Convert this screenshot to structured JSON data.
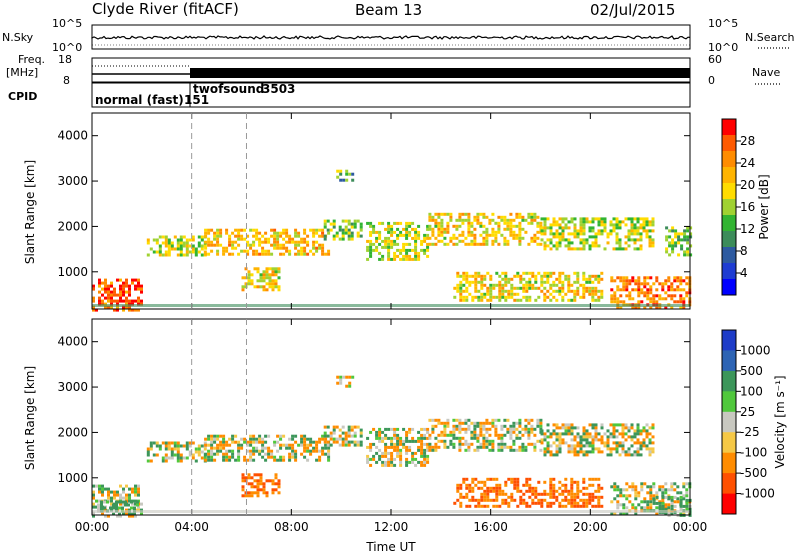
{
  "header": {
    "station": "Clyde River (fitACF)",
    "beam": "Beam 13",
    "date": "02/Jul/2015"
  },
  "noise_panel": {
    "left_label": "N.Sky",
    "right_label": "N.Search",
    "left_ticks": [
      "10^5",
      "10^0"
    ],
    "right_ticks": [
      "10^5",
      "10^0"
    ]
  },
  "freq_panel": {
    "left_label_line1": "Freq.",
    "left_label_line2": "[MHz]",
    "right_label": "Nave",
    "left_ticks": [
      "18",
      "8"
    ],
    "right_ticks": [
      "60",
      "0"
    ]
  },
  "cpid_panel": {
    "label": "CPID",
    "entries": [
      {
        "text": "normal (fast)",
        "start_hour": 0
      },
      {
        "text": "151",
        "start_hour": 4
      },
      {
        "text": "twofsound",
        "start_hour": 4.2
      },
      {
        "text": "3503",
        "start_hour": 4.2
      }
    ]
  },
  "power_colorbar": {
    "label": "Power [dB]",
    "ticks": [
      "28",
      "24",
      "20",
      "16",
      "12",
      "8",
      "4"
    ],
    "colors": [
      "#ff0000",
      "#ff5a00",
      "#ff8c00",
      "#ffb400",
      "#ffdc00",
      "#a0d232",
      "#32b432",
      "#3c8c5a",
      "#2d5aa0",
      "#1e3cd2",
      "#0000ff"
    ]
  },
  "velocity_colorbar": {
    "label": "Velocity [m s⁻¹]",
    "ticks": [
      "1000",
      "500",
      "100",
      "25",
      "-25",
      "-100",
      "-500",
      "-1000"
    ],
    "colors": [
      "#1e3cc8",
      "#2d64b4",
      "#3c965a",
      "#50c83c",
      "#c8c8c0",
      "#f5c846",
      "#ff8c00",
      "#ff5000",
      "#ff0000"
    ]
  },
  "x_axis": {
    "label": "Time UT",
    "ticks": [
      "00:00",
      "04:00",
      "08:00",
      "12:00",
      "16:00",
      "20:00",
      "00:00"
    ]
  },
  "chart_data": [
    {
      "type": "heatmap",
      "name": "power",
      "ylabel": "Slant Range [km]",
      "xlabel": "",
      "ylim": [
        180,
        4500
      ],
      "xlim_hours": [
        0,
        24
      ],
      "y_ticks": [
        1000,
        2000,
        3000,
        4000
      ],
      "colorbar_label": "Power [dB]",
      "colorbar_range": [
        0,
        30
      ],
      "vertical_marker_hours": [
        4,
        6.2
      ],
      "echo_regions": [
        {
          "t": [
            0,
            2.0
          ],
          "range_km": [
            180,
            850
          ],
          "value": 26
        },
        {
          "t": [
            2.2,
            4.5
          ],
          "range_km": [
            1350,
            1800
          ],
          "value": 16
        },
        {
          "t": [
            4.5,
            9.5
          ],
          "range_km": [
            1400,
            1950
          ],
          "value": 20
        },
        {
          "t": [
            6.0,
            7.5
          ],
          "range_km": [
            600,
            1100
          ],
          "value": 18
        },
        {
          "t": [
            9.3,
            10.8
          ],
          "range_km": [
            1700,
            2150
          ],
          "value": 14
        },
        {
          "t": [
            9.8,
            10.5
          ],
          "range_km": [
            3050,
            3250
          ],
          "value": 12
        },
        {
          "t": [
            11.0,
            13.5
          ],
          "range_km": [
            1300,
            2100
          ],
          "value": 16
        },
        {
          "t": [
            13.5,
            18.0
          ],
          "range_km": [
            1600,
            2300
          ],
          "value": 18
        },
        {
          "t": [
            14.5,
            20.5
          ],
          "range_km": [
            400,
            1000
          ],
          "value": 18
        },
        {
          "t": [
            18.0,
            22.5
          ],
          "range_km": [
            1500,
            2200
          ],
          "value": 16
        },
        {
          "t": [
            20.8,
            24
          ],
          "range_km": [
            180,
            900
          ],
          "value": 24
        },
        {
          "t": [
            23.0,
            24
          ],
          "range_km": [
            1400,
            2000
          ],
          "value": 14
        }
      ]
    },
    {
      "type": "heatmap",
      "name": "velocity",
      "ylabel": "Slant Range [km]",
      "xlabel": "Time UT",
      "ylim": [
        180,
        4500
      ],
      "xlim_hours": [
        0,
        24
      ],
      "y_ticks": [
        1000,
        2000,
        3000,
        4000
      ],
      "colorbar_label": "Velocity [m s⁻¹]",
      "colorbar_range": [
        -1000,
        1000
      ],
      "vertical_marker_hours": [
        4,
        6.2
      ],
      "echo_regions": [
        {
          "t": [
            0,
            2.0
          ],
          "range_km": [
            180,
            850
          ],
          "value": 0
        },
        {
          "t": [
            0.2,
            1.8
          ],
          "range_km": [
            200,
            500
          ],
          "value": 150
        },
        {
          "t": [
            2.2,
            4.5
          ],
          "range_km": [
            1350,
            1800
          ],
          "value": 0
        },
        {
          "t": [
            4.5,
            9.5
          ],
          "range_km": [
            1400,
            1950
          ],
          "value": 0
        },
        {
          "t": [
            6.0,
            7.5
          ],
          "range_km": [
            600,
            1100
          ],
          "value": -300
        },
        {
          "t": [
            9.3,
            10.8
          ],
          "range_km": [
            1700,
            2150
          ],
          "value": 0
        },
        {
          "t": [
            9.8,
            10.5
          ],
          "range_km": [
            3050,
            3250
          ],
          "value": -60
        },
        {
          "t": [
            11.0,
            13.5
          ],
          "range_km": [
            1300,
            2100
          ],
          "value": 0
        },
        {
          "t": [
            13.5,
            18.0
          ],
          "range_km": [
            1600,
            2300
          ],
          "value": 0
        },
        {
          "t": [
            14.5,
            20.5
          ],
          "range_km": [
            400,
            1000
          ],
          "value": -300
        },
        {
          "t": [
            18.0,
            22.5
          ],
          "range_km": [
            1500,
            2200
          ],
          "value": 0
        },
        {
          "t": [
            20.8,
            24
          ],
          "range_km": [
            180,
            900
          ],
          "value": 0
        },
        {
          "t": [
            22.5,
            24
          ],
          "range_km": [
            200,
            600
          ],
          "value": 150
        }
      ]
    }
  ]
}
